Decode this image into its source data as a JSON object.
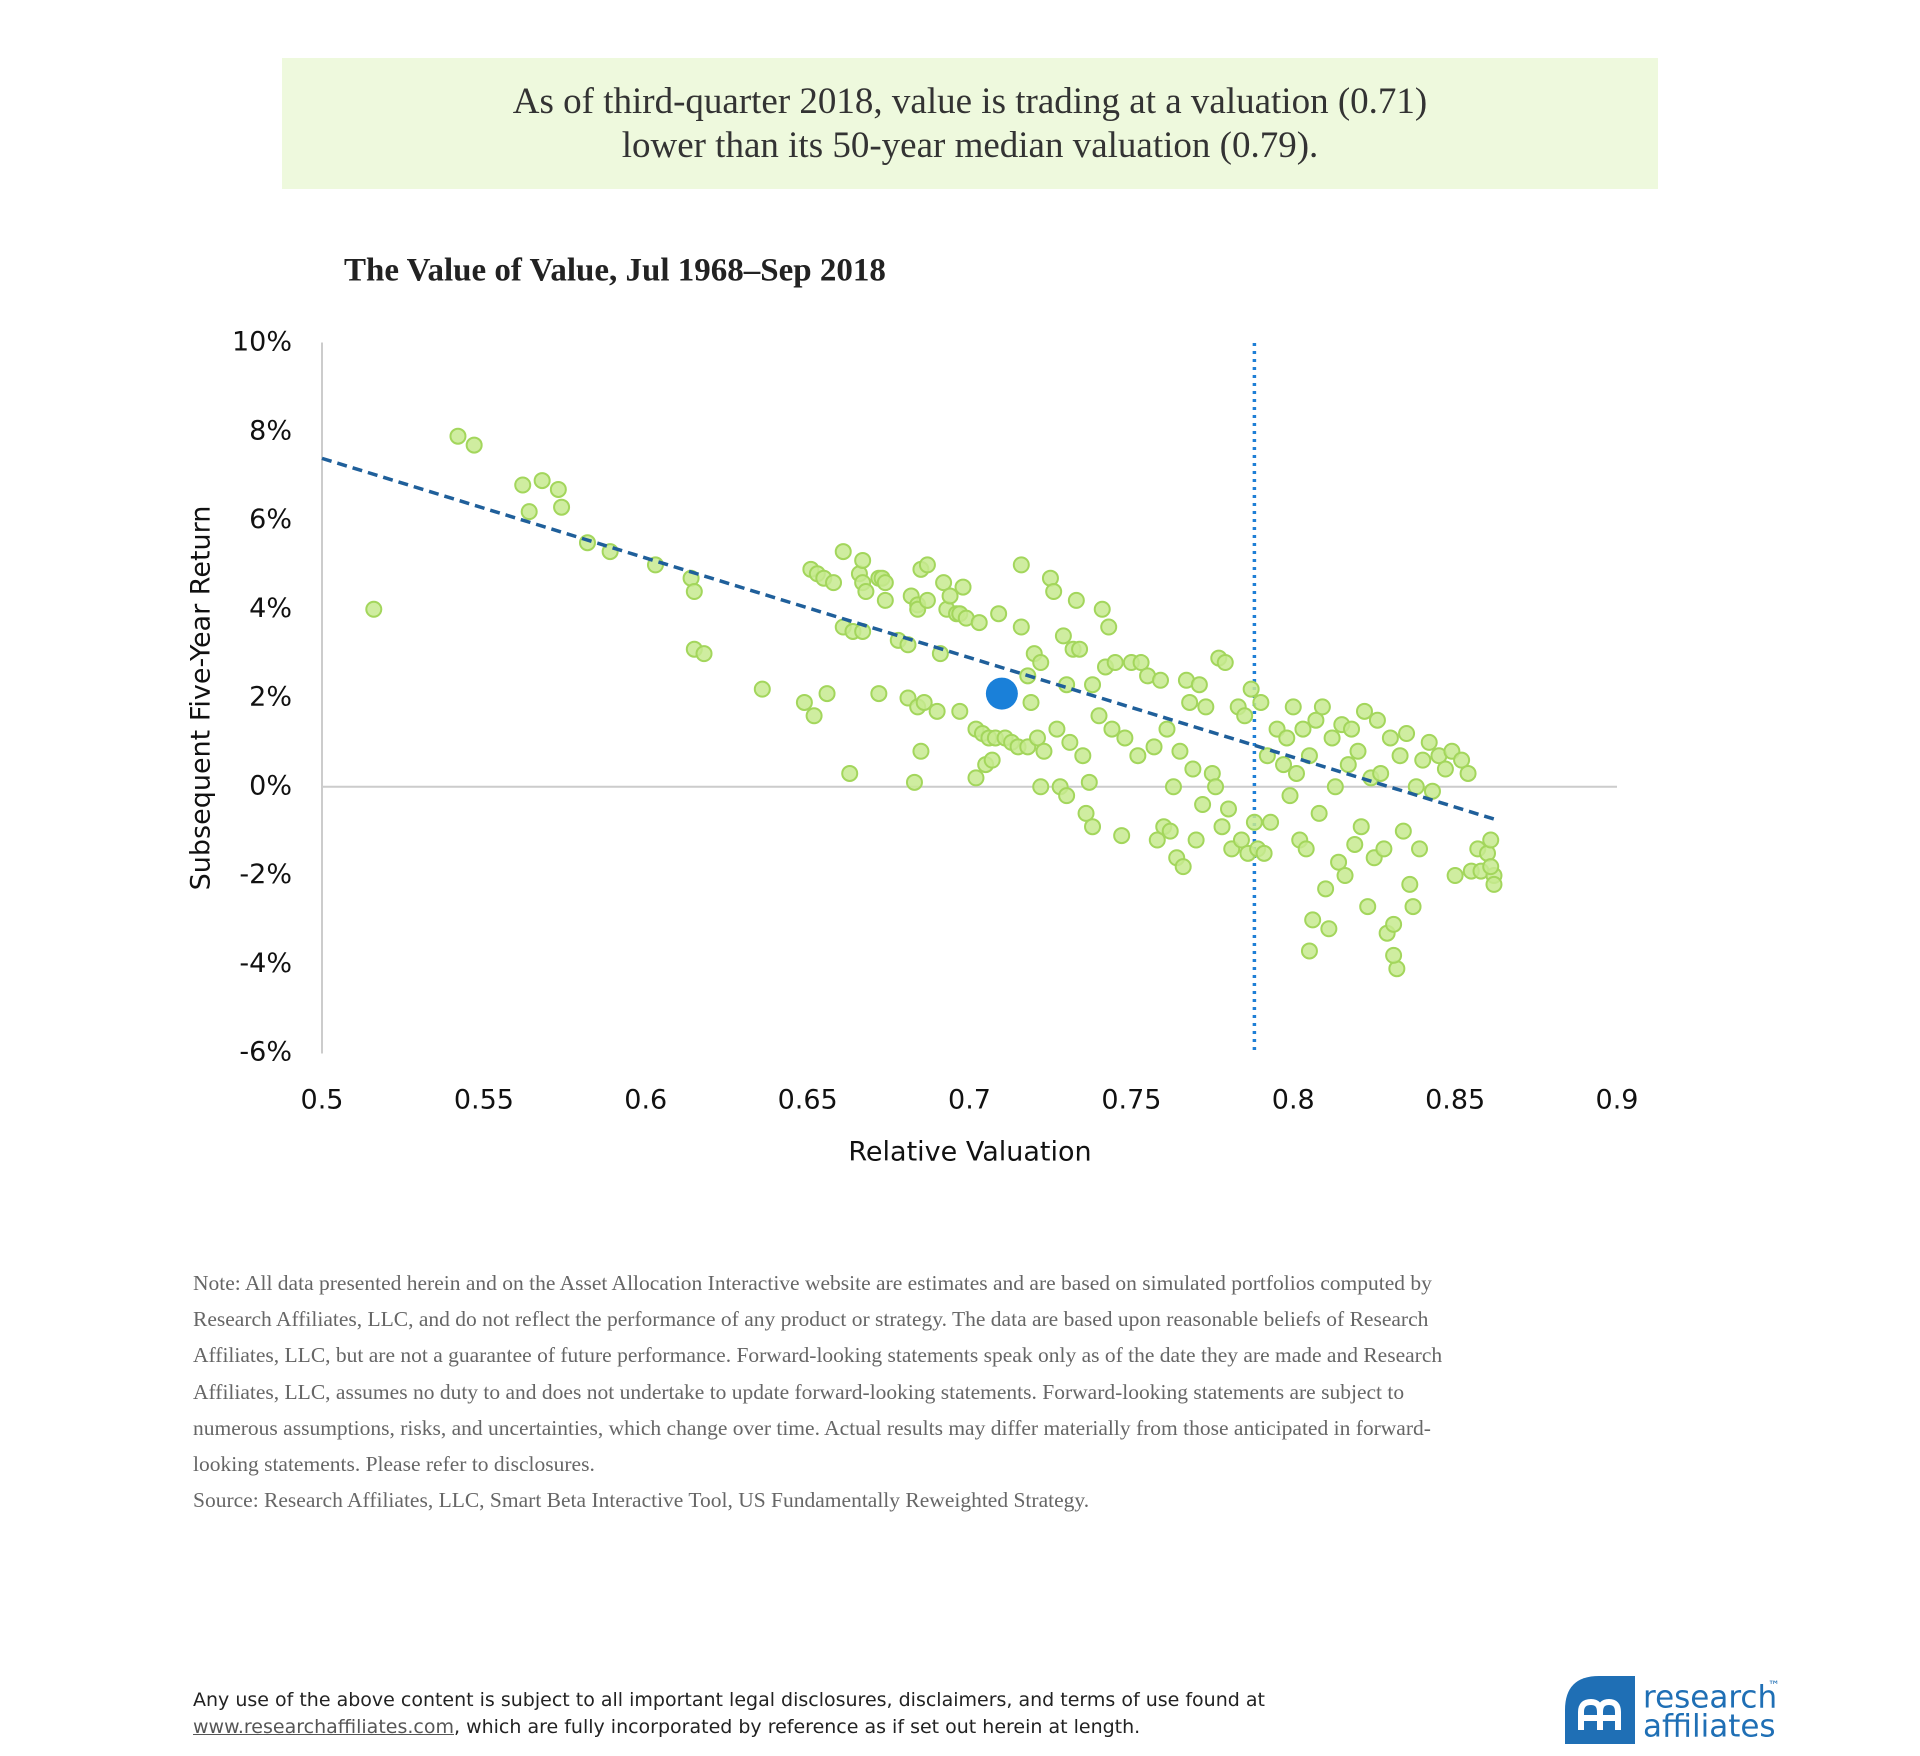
{
  "header": {
    "lines": [
      "As of third-quarter 2018, value is trading at a valuation (0.71)",
      "lower than its 50-year median valuation (0.79)."
    ]
  },
  "chart_data": {
    "type": "scatter",
    "title": "The Value of Value, Jul 1968–Sep 2018",
    "xlabel": "Relative Valuation",
    "ylabel": "Subsequent Five-Year Return",
    "xlim": [
      0.5,
      0.9
    ],
    "xticks": [
      0.5,
      0.55,
      0.6,
      0.65,
      0.7,
      0.75,
      0.8,
      0.85,
      0.9
    ],
    "ylim": [
      -6,
      10
    ],
    "yticks": [
      {
        "value": -6,
        "label": "-6%"
      },
      {
        "value": -4,
        "label": "-4%"
      },
      {
        "value": -2,
        "label": "-2%"
      },
      {
        "value": 0,
        "label": "0%"
      },
      {
        "value": 2,
        "label": "2%"
      },
      {
        "value": 4,
        "label": "4%"
      },
      {
        "value": 6,
        "label": "6%"
      },
      {
        "value": 8,
        "label": "8%"
      },
      {
        "value": 10,
        "label": "10%"
      }
    ],
    "median_x": 0.788,
    "median_color": "#1f7fd6",
    "zero_line": true,
    "series": [
      {
        "type": "scatter",
        "color": "#c7ea8f",
        "edge": "#a3d65c",
        "x": [
          0.516,
          0.542,
          0.547,
          0.562,
          0.564,
          0.568,
          0.573,
          0.574,
          0.582,
          0.589,
          0.603,
          0.614,
          0.615,
          0.615,
          0.618,
          0.636,
          0.649,
          0.651,
          0.652,
          0.653,
          0.655,
          0.656,
          0.658,
          0.661,
          0.661,
          0.663,
          0.664,
          0.666,
          0.667,
          0.667,
          0.667,
          0.668,
          0.672,
          0.672,
          0.673,
          0.674,
          0.674,
          0.678,
          0.681,
          0.681,
          0.682,
          0.683,
          0.684,
          0.684,
          0.684,
          0.685,
          0.685,
          0.686,
          0.687,
          0.687,
          0.69,
          0.691,
          0.692,
          0.693,
          0.694,
          0.696,
          0.697,
          0.697,
          0.698,
          0.699,
          0.702,
          0.702,
          0.703,
          0.704,
          0.705,
          0.706,
          0.707,
          0.708,
          0.709,
          0.711,
          0.713,
          0.715,
          0.716,
          0.716,
          0.718,
          0.718,
          0.719,
          0.72,
          0.721,
          0.722,
          0.722,
          0.723,
          0.725,
          0.726,
          0.727,
          0.728,
          0.729,
          0.73,
          0.73,
          0.731,
          0.732,
          0.733,
          0.734,
          0.735,
          0.736,
          0.737,
          0.738,
          0.738,
          0.74,
          0.741,
          0.742,
          0.743,
          0.744,
          0.745,
          0.747,
          0.748,
          0.75,
          0.752,
          0.753,
          0.755,
          0.757,
          0.758,
          0.759,
          0.76,
          0.761,
          0.762,
          0.763,
          0.764,
          0.765,
          0.766,
          0.767,
          0.768,
          0.769,
          0.77,
          0.771,
          0.772,
          0.773,
          0.775,
          0.776,
          0.777,
          0.778,
          0.779,
          0.78,
          0.781,
          0.783,
          0.784,
          0.785,
          0.786,
          0.787,
          0.788,
          0.789,
          0.79,
          0.791,
          0.792,
          0.793,
          0.795,
          0.797,
          0.798,
          0.799,
          0.8,
          0.801,
          0.802,
          0.803,
          0.804,
          0.805,
          0.805,
          0.806,
          0.807,
          0.808,
          0.809,
          0.81,
          0.811,
          0.812,
          0.813,
          0.814,
          0.815,
          0.816,
          0.817,
          0.818,
          0.819,
          0.82,
          0.821,
          0.822,
          0.823,
          0.824,
          0.825,
          0.826,
          0.827,
          0.828,
          0.829,
          0.83,
          0.831,
          0.832,
          0.831,
          0.833,
          0.834,
          0.835,
          0.836,
          0.837,
          0.838,
          0.839,
          0.84,
          0.842,
          0.843,
          0.845,
          0.847,
          0.849,
          0.85,
          0.852,
          0.854,
          0.855,
          0.857,
          0.858,
          0.86,
          0.861,
          0.862,
          0.862,
          0.861
        ],
        "values": [
          4.0,
          7.9,
          7.7,
          6.8,
          6.2,
          6.9,
          6.7,
          6.3,
          5.5,
          5.3,
          5.0,
          4.7,
          4.4,
          3.1,
          3.0,
          2.2,
          1.9,
          4.9,
          1.6,
          4.8,
          4.7,
          2.1,
          4.6,
          5.3,
          3.6,
          0.3,
          3.5,
          4.8,
          3.5,
          5.1,
          4.6,
          4.4,
          4.7,
          2.1,
          4.7,
          4.6,
          4.2,
          3.3,
          3.2,
          2.0,
          4.3,
          0.1,
          4.1,
          4.0,
          1.8,
          0.8,
          4.9,
          1.9,
          5.0,
          4.2,
          1.7,
          3.0,
          4.6,
          4.0,
          4.3,
          3.9,
          1.7,
          3.9,
          4.5,
          3.8,
          0.2,
          1.3,
          3.7,
          1.2,
          0.5,
          1.1,
          0.6,
          1.1,
          3.9,
          1.1,
          1.0,
          0.9,
          5.0,
          3.6,
          0.9,
          2.5,
          1.9,
          3.0,
          1.1,
          0.0,
          2.8,
          0.8,
          4.7,
          4.4,
          1.3,
          0.0,
          3.4,
          -0.2,
          2.3,
          1.0,
          3.1,
          4.2,
          3.1,
          0.7,
          -0.6,
          0.1,
          -0.9,
          2.3,
          1.6,
          4.0,
          2.7,
          3.6,
          1.3,
          2.8,
          -1.1,
          1.1,
          2.8,
          0.7,
          2.8,
          2.5,
          0.9,
          -1.2,
          2.4,
          -0.9,
          1.3,
          -1.0,
          0.0,
          -1.6,
          0.8,
          -1.8,
          2.4,
          1.9,
          0.4,
          -1.2,
          2.3,
          -0.4,
          1.8,
          0.3,
          0.0,
          2.9,
          -0.9,
          2.8,
          -0.5,
          -1.4,
          1.8,
          -1.2,
          1.6,
          -1.5,
          2.2,
          -0.8,
          -1.4,
          1.9,
          -1.5,
          0.7,
          -0.8,
          1.3,
          0.5,
          1.1,
          -0.2,
          1.8,
          0.3,
          -1.2,
          1.3,
          -1.4,
          -3.7,
          0.7,
          -3.0,
          1.5,
          -0.6,
          1.8,
          -2.3,
          -3.2,
          1.1,
          0.0,
          -1.7,
          1.4,
          -2.0,
          0.5,
          1.3,
          -1.3,
          0.8,
          -0.9,
          1.7,
          -2.7,
          0.2,
          -1.6,
          1.5,
          0.3,
          -1.4,
          -3.3,
          1.1,
          -3.1,
          -4.1,
          -3.8,
          0.7,
          -1.0,
          1.2,
          -2.2,
          -2.7,
          0.0,
          -1.4,
          0.6,
          1.0,
          -0.1,
          0.7,
          0.4,
          0.8,
          -2.0,
          0.6,
          0.3,
          -1.9,
          -1.4,
          -1.9,
          -1.5,
          -1.2,
          -2.0,
          -2.2,
          -1.8
        ]
      },
      {
        "type": "line",
        "color": "#1f5f9a",
        "x": [
          0.5,
          0.863
        ],
        "values": [
          7.4,
          -0.75
        ]
      },
      {
        "type": "highlight",
        "color": "#1a80d9",
        "x": [
          0.71
        ],
        "values": [
          2.1
        ]
      }
    ]
  },
  "notes": {
    "lines": [
      "Note: All data presented herein and on the Asset Allocation Interactive website are estimates and are based on simulated portfolios computed by",
      "Research Affiliates, LLC, and do not reflect the performance of any product or strategy. The data are based upon reasonable beliefs of Research",
      "Affiliates, LLC, but are not a guarantee of future performance. Forward-looking statements speak only as of the date they are made and Research",
      "Affiliates, LLC, assumes no duty to and does not undertake to update forward-looking statements. Forward-looking statements are subject to",
      "numerous assumptions, risks, and uncertainties, which change over time. Actual results may differ materially from those anticipated in forward-",
      "looking statements. Please refer to disclosures."
    ],
    "source": "Source: Research Affiliates, LLC, Smart Beta Interactive Tool, US Fundamentally Reweighted Strategy."
  },
  "footer": {
    "line1": "Any use of the above content is subject to all important legal disclosures, disclaimers, and terms of use found at",
    "link": "www.researchaffiliates.com",
    "line2": ", which are fully incorporated by reference as if set out herein at length."
  },
  "logo": {
    "word1": "research",
    "tm": "™",
    "word2": "affiliates"
  }
}
